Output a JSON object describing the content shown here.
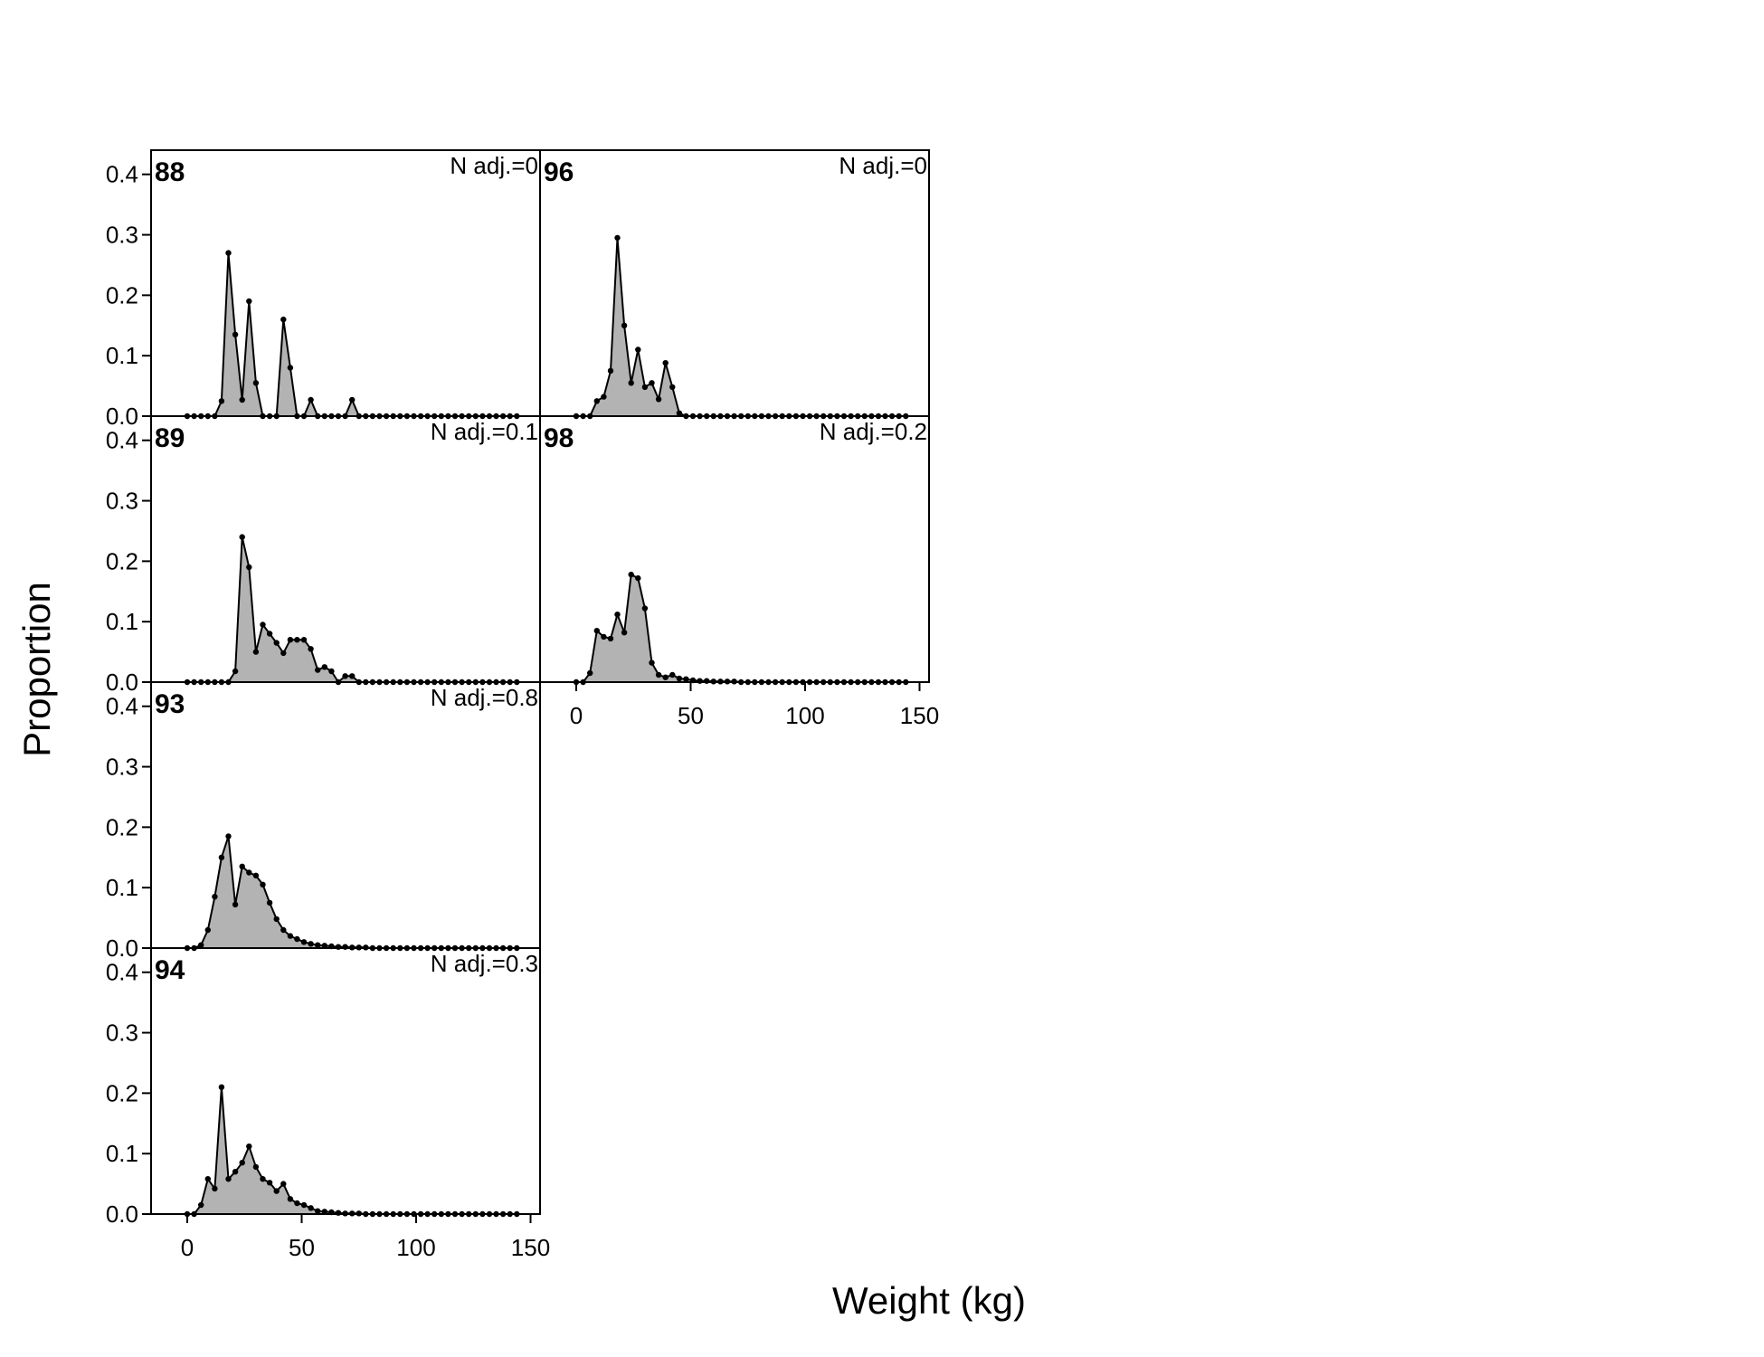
{
  "chart_data": {
    "type": "area",
    "xlabel": "Weight (kg)",
    "ylabel": "Proportion",
    "xlim": [
      0,
      150
    ],
    "ylim": [
      0,
      0.4
    ],
    "x_ticks": [
      "0",
      "50",
      "100",
      "150"
    ],
    "y_ticks": [
      "0.0",
      "0.1",
      "0.2",
      "0.3",
      "0.4"
    ],
    "fill_color": "#b3b3b3",
    "line_color": "#000000",
    "x": [
      0,
      3,
      6,
      9,
      12,
      15,
      18,
      21,
      24,
      27,
      30,
      33,
      36,
      39,
      42,
      45,
      48,
      51,
      54,
      57,
      60,
      63,
      66,
      69,
      72,
      75,
      78,
      81,
      84,
      87,
      90,
      93,
      96,
      99,
      102,
      105,
      108,
      111,
      114,
      117,
      120,
      123,
      126,
      129,
      132,
      135,
      138,
      141,
      144
    ],
    "panels": [
      {
        "label": "88",
        "adj": "N adj.=0",
        "values": [
          0,
          0,
          0,
          0,
          0,
          0.025,
          0.27,
          0.135,
          0.027,
          0.19,
          0.055,
          0,
          0,
          0,
          0.16,
          0.08,
          0,
          0,
          0.027,
          0,
          0,
          0,
          0,
          0,
          0.027,
          0,
          0,
          0,
          0,
          0,
          0,
          0,
          0,
          0,
          0,
          0,
          0,
          0,
          0,
          0,
          0,
          0,
          0,
          0,
          0,
          0,
          0,
          0,
          0
        ],
        "x_step": 6
      },
      {
        "label": "89",
        "adj": "N adj.=0.1",
        "values": [
          0,
          0,
          0,
          0,
          0,
          0,
          0,
          0.018,
          0.24,
          0.19,
          0.05,
          0.095,
          0.08,
          0.065,
          0.048,
          0.07,
          0.07,
          0.07,
          0.055,
          0.02,
          0.025,
          0.018,
          0,
          0.01,
          0.01,
          0,
          0,
          0,
          0,
          0,
          0,
          0,
          0,
          0,
          0,
          0,
          0,
          0,
          0,
          0,
          0,
          0,
          0,
          0,
          0,
          0,
          0,
          0,
          0
        ]
      },
      {
        "label": "93",
        "adj": "N adj.=0.8",
        "values": [
          0,
          0,
          0.005,
          0.03,
          0.085,
          0.15,
          0.185,
          0.072,
          0.135,
          0.125,
          0.12,
          0.105,
          0.075,
          0.048,
          0.03,
          0.02,
          0.015,
          0.01,
          0.007,
          0.005,
          0.004,
          0.003,
          0.002,
          0.002,
          0.001,
          0.001,
          0.001,
          0,
          0,
          0,
          0,
          0,
          0,
          0,
          0,
          0,
          0,
          0,
          0,
          0,
          0,
          0,
          0,
          0,
          0,
          0,
          0,
          0,
          0
        ]
      },
      {
        "label": "94",
        "adj": "N adj.=0.3",
        "values": [
          0,
          0,
          0.015,
          0.058,
          0.042,
          0.21,
          0.058,
          0.07,
          0.085,
          0.112,
          0.078,
          0.058,
          0.052,
          0.038,
          0.05,
          0.025,
          0.018,
          0.015,
          0.01,
          0.005,
          0.004,
          0.003,
          0.002,
          0.001,
          0.001,
          0.001,
          0,
          0,
          0,
          0,
          0,
          0,
          0,
          0,
          0,
          0,
          0,
          0,
          0,
          0,
          0,
          0,
          0,
          0,
          0,
          0,
          0,
          0,
          0
        ]
      },
      {
        "label": "96",
        "adj": "N adj.=0",
        "values": [
          0,
          0,
          0,
          0.025,
          0.032,
          0.075,
          0.295,
          0.15,
          0.055,
          0.11,
          0.048,
          0.055,
          0.028,
          0.088,
          0.048,
          0.005,
          0,
          0,
          0,
          0,
          0,
          0,
          0,
          0,
          0,
          0,
          0,
          0,
          0,
          0,
          0,
          0,
          0,
          0,
          0,
          0,
          0,
          0,
          0,
          0,
          0,
          0,
          0,
          0,
          0,
          0,
          0,
          0,
          0
        ]
      },
      {
        "label": "98",
        "adj": "N adj.=0.2",
        "values": [
          0,
          0,
          0.015,
          0.085,
          0.075,
          0.072,
          0.112,
          0.082,
          0.178,
          0.172,
          0.122,
          0.032,
          0.012,
          0.008,
          0.012,
          0.006,
          0.005,
          0.003,
          0.002,
          0.002,
          0.001,
          0.001,
          0.001,
          0.001,
          0,
          0,
          0,
          0,
          0,
          0,
          0,
          0,
          0,
          0,
          0,
          0,
          0,
          0,
          0,
          0,
          0,
          0,
          0,
          0,
          0,
          0,
          0,
          0,
          0
        ]
      }
    ]
  }
}
